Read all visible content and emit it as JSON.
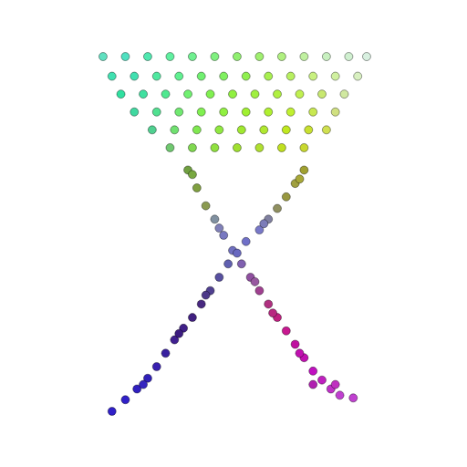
{
  "chart_data": {
    "type": "scatter",
    "x": [
      110,
      135,
      160,
      185,
      210,
      235,
      260,
      285,
      310,
      335,
      360,
      385,
      405,
      120,
      145,
      170,
      195,
      220,
      245,
      270,
      295,
      320,
      345,
      370,
      395,
      130,
      155,
      180,
      205,
      230,
      255,
      280,
      305,
      330,
      355,
      380,
      145,
      170,
      195,
      220,
      245,
      270,
      295,
      320,
      345,
      370,
      165,
      190,
      215,
      240,
      265,
      290,
      315,
      340,
      360,
      185,
      210,
      235,
      260,
      285,
      310,
      335,
      205,
      215,
      225,
      235,
      245,
      255,
      265,
      275,
      285,
      295,
      305,
      315,
      325,
      335,
      345,
      355,
      365,
      375,
      390,
      345,
      210,
      240,
      280,
      300,
      330,
      370,
      335,
      325,
      315,
      305,
      295,
      285,
      270,
      260,
      250,
      240,
      230,
      220,
      210,
      200,
      190,
      180,
      170,
      160,
      148,
      135,
      120,
      330,
      290,
      225,
      195,
      155
    ],
    "values": [
      454,
      454,
      454,
      454,
      454,
      454,
      454,
      454,
      454,
      454,
      454,
      454,
      454,
      432,
      432,
      432,
      432,
      432,
      432,
      432,
      432,
      432,
      432,
      432,
      432,
      412,
      412,
      412,
      412,
      412,
      412,
      412,
      412,
      412,
      412,
      412,
      392,
      392,
      392,
      392,
      392,
      392,
      392,
      392,
      392,
      392,
      372,
      372,
      372,
      372,
      372,
      372,
      372,
      372,
      372,
      352,
      352,
      352,
      352,
      352,
      352,
      352,
      327,
      307,
      287,
      272,
      254,
      237,
      222,
      207,
      192,
      177,
      162,
      147,
      132,
      117,
      102,
      92,
      82,
      75,
      72,
      87,
      322,
      262,
      202,
      167,
      122,
      87,
      327,
      312,
      297,
      284,
      272,
      260,
      247,
      234,
      222,
      207,
      192,
      177,
      162,
      150,
      137,
      122,
      107,
      94,
      82,
      70,
      57,
      317,
      267,
      187,
      144,
      87
    ],
    "colors": [
      "#60e0c0",
      "#50e0c0",
      "#50e8b0",
      "#60f0a0",
      "#70f090",
      "#80f080",
      "#90f070",
      "#a0f070",
      "#b0f080",
      "#c0f0a0",
      "#c8f0c0",
      "#d0f0d0",
      "#d8f0e0",
      "#40e0b0",
      "#40e0b0",
      "#50e8a0",
      "#60f090",
      "#70f070",
      "#80f060",
      "#90f050",
      "#a8f050",
      "#b8f060",
      "#c8f080",
      "#d0f0a0",
      "#d8f0c0",
      "#30e0a0",
      "#40e0a0",
      "#50e890",
      "#70f070",
      "#80f050",
      "#90f040",
      "#a0f040",
      "#b0f040",
      "#c0f050",
      "#c8e870",
      "#d0e8a0",
      "#40d8a0",
      "#50e090",
      "#70e870",
      "#80f050",
      "#90f040",
      "#a0f030",
      "#b0f030",
      "#c0f030",
      "#c8e850",
      "#d0e080",
      "#50d090",
      "#70e070",
      "#80e850",
      "#90e840",
      "#a0e830",
      "#b0e830",
      "#c0e820",
      "#c8e030",
      "#d0e050",
      "#70c870",
      "#80d850",
      "#90e040",
      "#a0e030",
      "#b0e030",
      "#c0e020",
      "#c8d830",
      "#70a040",
      "#80a040",
      "#8a9a50",
      "#8090a0",
      "#7878c0",
      "#7070c0",
      "#8060b0",
      "#9050a0",
      "#a04090",
      "#b03080",
      "#c02080",
      "#c81890",
      "#c010a0",
      "#c010b0",
      "#c010c0",
      "#c020c0",
      "#c030c8",
      "#c040d0",
      "#c040d0",
      "#b020b0",
      "#78a840",
      "#8080b8",
      "#9858a0",
      "#b82880",
      "#c010b0",
      "#c030c0",
      "#a0a030",
      "#a0a040",
      "#989840",
      "#909060",
      "#8080a0",
      "#7878c8",
      "#7070c8",
      "#6868c0",
      "#6060b0",
      "#5850a0",
      "#504090",
      "#482880",
      "#402080",
      "#402088",
      "#402090",
      "#3820a0",
      "#3820b0",
      "#3020b8",
      "#3020c0",
      "#3020c8",
      "#3020c8",
      "#a8a838",
      "#7c7cb8",
      "#4c3888",
      "#3c1c80",
      "#3424c0"
    ],
    "xlim": [
      0,
      512
    ],
    "ylim": [
      0,
      512
    ],
    "tick_labels": false,
    "grid": false
  }
}
